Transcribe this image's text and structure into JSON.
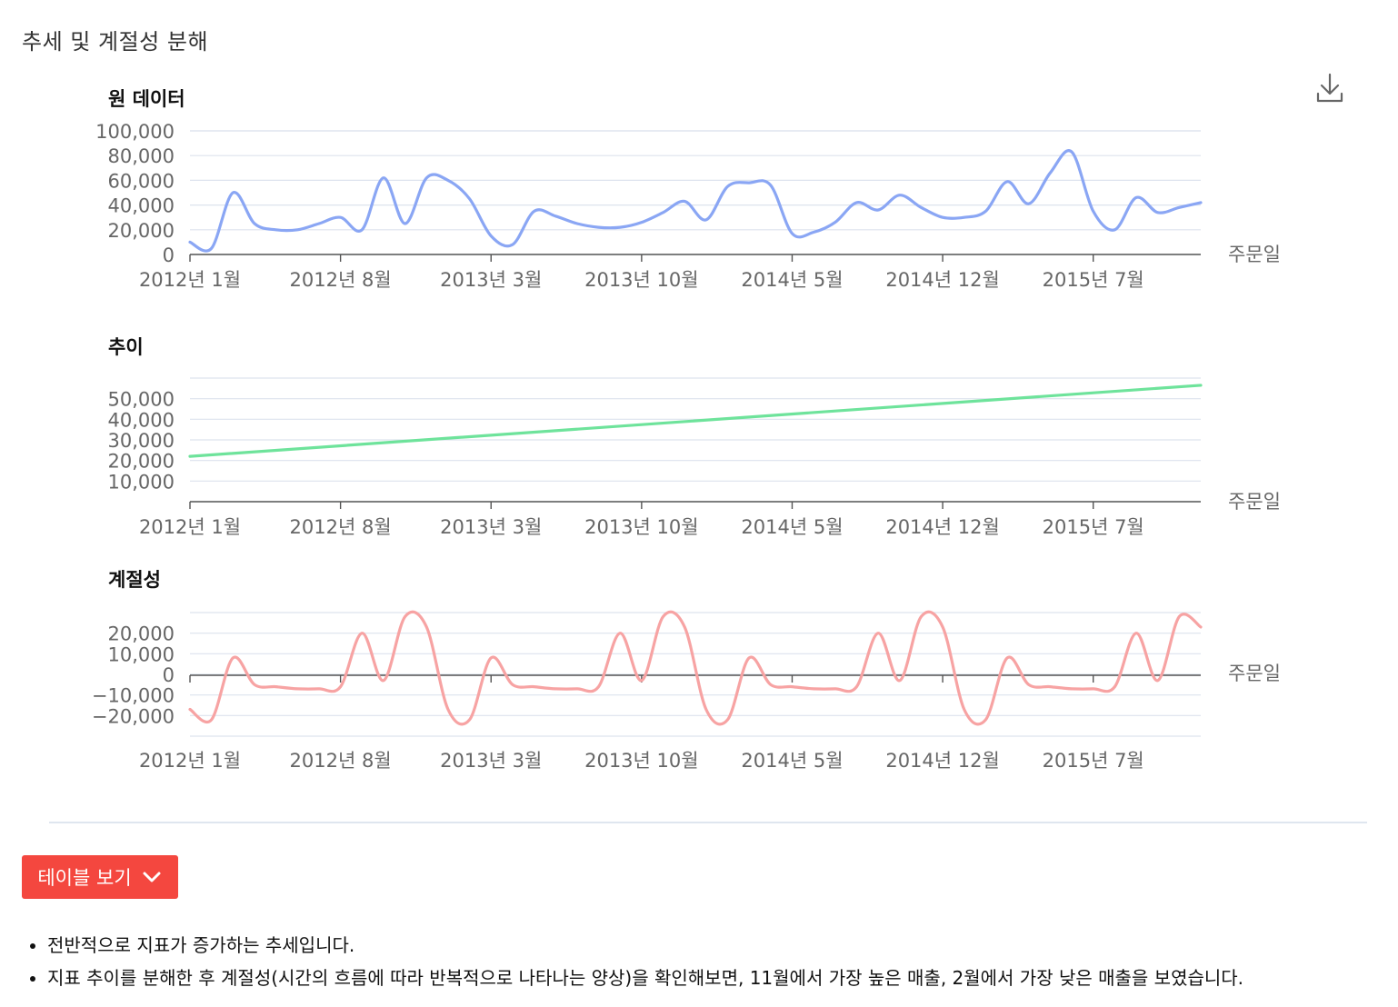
{
  "header": {
    "title": "추세 및 계절성 분해"
  },
  "toolbar": {
    "download_icon": "download-icon"
  },
  "chart_data": [
    {
      "type": "line",
      "title": "원 데이터",
      "xlabel": "주문일",
      "ylabel": "",
      "x": [
        "2012-01",
        "2012-02",
        "2012-03",
        "2012-04",
        "2012-05",
        "2012-06",
        "2012-07",
        "2012-08",
        "2012-09",
        "2012-10",
        "2012-11",
        "2012-12",
        "2013-01",
        "2013-02",
        "2013-03",
        "2013-04",
        "2013-05",
        "2013-06",
        "2013-07",
        "2013-08",
        "2013-09",
        "2013-10",
        "2013-11",
        "2013-12",
        "2014-01",
        "2014-02",
        "2014-03",
        "2014-04",
        "2014-05",
        "2014-06",
        "2014-07",
        "2014-08",
        "2014-09",
        "2014-10",
        "2014-11",
        "2014-12",
        "2015-01",
        "2015-02",
        "2015-03",
        "2015-04",
        "2015-05",
        "2015-06",
        "2015-07",
        "2015-08",
        "2015-09",
        "2015-10",
        "2015-11",
        "2015-12"
      ],
      "x_tick_labels": [
        "2012년 1월",
        "2012년 8월",
        "2013년 3월",
        "2013년 10월",
        "2014년 5월",
        "2014년 12월",
        "2015년 7월"
      ],
      "x_tick_positions": [
        "2012-01",
        "2012-08",
        "2013-03",
        "2013-10",
        "2014-05",
        "2014-12",
        "2015-07"
      ],
      "y_ticks": [
        0,
        20000,
        40000,
        60000,
        80000,
        100000
      ],
      "y_tick_labels": [
        "0",
        "20,000",
        "40,000",
        "60,000",
        "80,000",
        "100,000"
      ],
      "ylim": [
        0,
        100000
      ],
      "color": "#8aa6f4",
      "series": [
        {
          "values": [
            10000,
            5000,
            50000,
            25000,
            20000,
            20000,
            25000,
            30000,
            20000,
            62000,
            25000,
            62000,
            60000,
            45000,
            15000,
            8000,
            35000,
            31000,
            25000,
            22000,
            22000,
            26000,
            34000,
            43000,
            28000,
            55000,
            58000,
            56000,
            17000,
            18000,
            26000,
            42000,
            36000,
            48000,
            38000,
            30000,
            30000,
            35000,
            59000,
            41000,
            66000,
            83000,
            35000,
            20000,
            46000,
            34000,
            38000,
            42000
          ]
        }
      ]
    },
    {
      "type": "line",
      "title": "추이",
      "xlabel": "주문일",
      "ylabel": "",
      "x_tick_labels": [
        "2012년 1월",
        "2012년 8월",
        "2013년 3월",
        "2013년 10월",
        "2014년 5월",
        "2014년 12월",
        "2015년 7월"
      ],
      "x_tick_positions": [
        "2012-01",
        "2012-08",
        "2013-03",
        "2013-10",
        "2014-05",
        "2014-12",
        "2015-07"
      ],
      "y_ticks": [
        10000,
        20000,
        30000,
        40000,
        50000
      ],
      "y_tick_labels": [
        "10,000",
        "20,000",
        "30,000",
        "40,000",
        "50,000"
      ],
      "ylim": [
        0,
        60000
      ],
      "color": "#6ee39b",
      "series": [
        {
          "x": [
            "2012-01",
            "2015-12"
          ],
          "values": [
            22000,
            56500
          ]
        }
      ]
    },
    {
      "type": "line",
      "title": "계절성",
      "xlabel": "주문일",
      "ylabel": "",
      "x_tick_labels": [
        "2012년 1월",
        "2012년 8월",
        "2013년 3월",
        "2013년 10월",
        "2014년 5월",
        "2014년 12월",
        "2015년 7월"
      ],
      "x_tick_positions": [
        "2012-01",
        "2012-08",
        "2013-03",
        "2013-10",
        "2014-05",
        "2014-12",
        "2015-07"
      ],
      "y_ticks": [
        -20000,
        -10000,
        0,
        10000,
        20000
      ],
      "y_tick_labels": [
        "−20,000",
        "−10,000",
        "0",
        "10,000",
        "20,000"
      ],
      "ylim": [
        -30000,
        30000
      ],
      "color": "#f7a3a3",
      "series": [
        {
          "values": [
            -17000,
            -22000,
            8000,
            -5000,
            -6000,
            -7000,
            -7000,
            -6000,
            20000,
            -3000,
            28000,
            23000,
            -17000,
            -22000,
            8000,
            -5000,
            -6000,
            -7000,
            -7000,
            -6000,
            20000,
            -3000,
            28000,
            23000,
            -17000,
            -22000,
            8000,
            -5000,
            -6000,
            -7000,
            -7000,
            -6000,
            20000,
            -3000,
            28000,
            23000,
            -17000,
            -22000,
            8000,
            -5000,
            -6000,
            -7000,
            -7000,
            -6000,
            20000,
            -3000,
            28000,
            23000
          ]
        }
      ]
    }
  ],
  "table_toggle": {
    "label": "테이블 보기",
    "icon": "chevron-down-icon"
  },
  "notes": [
    "전반적으로 지표가 증가하는 추세입니다.",
    "지표 추이를 분해한 후 계절성(시간의 흐름에 따라 반복적으로 나타나는 양상)을 확인해보면, 11월에서 가장 높은 매출, 2월에서 가장 낮은 매출을 보였습니다."
  ]
}
